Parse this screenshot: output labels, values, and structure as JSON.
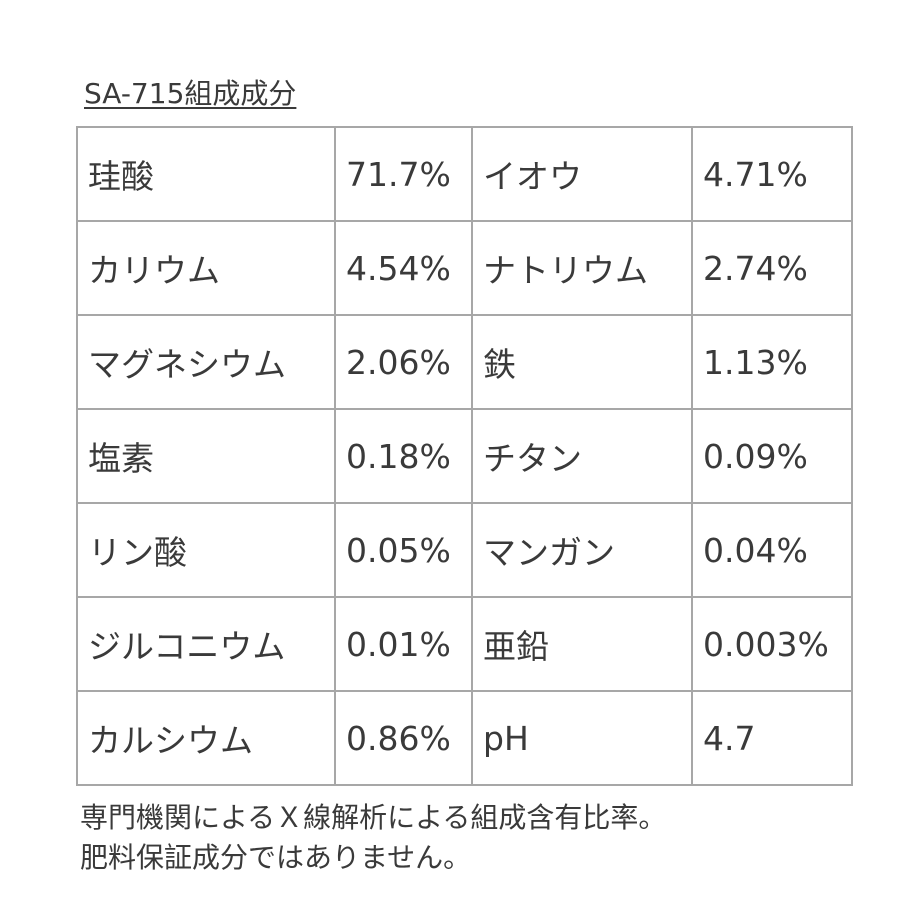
{
  "title": "SA-715組成成分",
  "table": {
    "rows": [
      {
        "name1": "珪酸",
        "value1": "71.7%",
        "name2": "イオウ",
        "value2": "4.71%"
      },
      {
        "name1": "カリウム",
        "value1": "4.54%",
        "name2": "ナトリウム",
        "value2": "2.74%"
      },
      {
        "name1": "マグネシウム",
        "value1": "2.06%",
        "name2": "鉄",
        "value2": "1.13%"
      },
      {
        "name1": "塩素",
        "value1": "0.18%",
        "name2": "チタン",
        "value2": "0.09%"
      },
      {
        "name1": "リン酸",
        "value1": "0.05%",
        "name2": "マンガン",
        "value2": "0.04%"
      },
      {
        "name1": "ジルコニウム",
        "value1": "0.01%",
        "name2": "亜鉛",
        "value2": "0.003%"
      },
      {
        "name1": "カルシウム",
        "value1": "0.86%",
        "name2": "pH",
        "value2": "4.7"
      }
    ]
  },
  "footnote": {
    "line1": "専門機関によるＸ線解析による組成含有比率。",
    "line2": "肥料保証成分ではありません。"
  }
}
